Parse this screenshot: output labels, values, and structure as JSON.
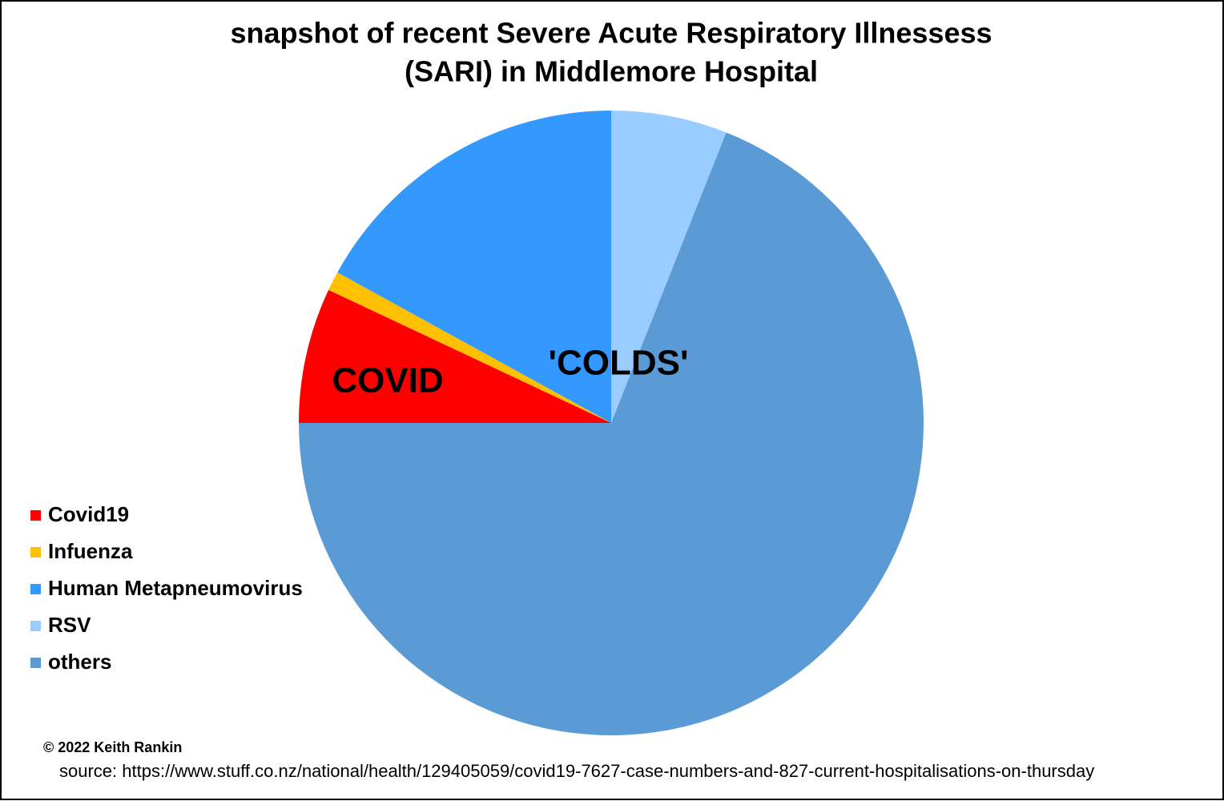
{
  "chart_data": {
    "type": "pie",
    "title": [
      "snapshot of recent Severe Acute Respiratory Illnessess",
      "(SARI) in Middlemore Hospital"
    ],
    "categories": [
      "Covid19",
      "Infuenza",
      "Human Metapneumovirus",
      "RSV",
      "others"
    ],
    "values": [
      7,
      1,
      17,
      6,
      69
    ],
    "colors": [
      "#ff0000",
      "#ffc000",
      "#3399ff",
      "#99ccff",
      "#5b9bd5"
    ],
    "start_angle": 270,
    "legend": "left",
    "annotations": [
      "COVID",
      "'COLDS'"
    ],
    "credit": "© 2022  Keith Rankin",
    "source": "source:  https://www.stuff.co.nz/national/health/129405059/covid19-7627-case-numbers-and-827-current-hospitalisations-on-thursday"
  }
}
